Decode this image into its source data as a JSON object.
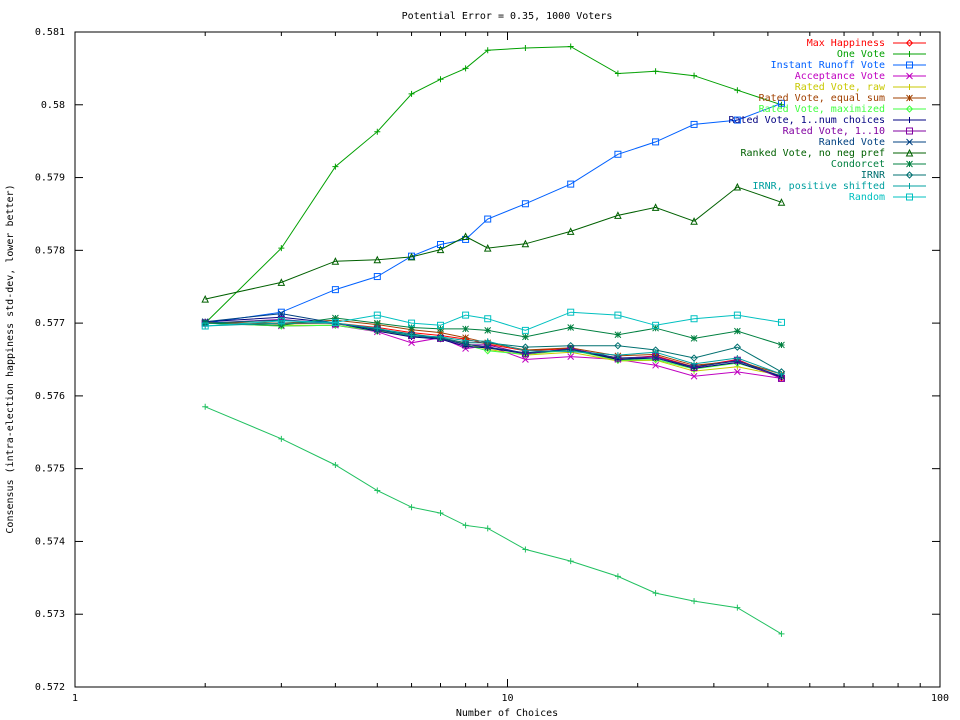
{
  "chart_data": {
    "type": "line",
    "title": "Potential Error = 0.35, 1000 Voters",
    "xlabel": "Number of Choices",
    "ylabel": "Consensus (intra-election happiness std-dev, lower better)",
    "x_scale": "log",
    "xlim": [
      1,
      100
    ],
    "ylim": [
      0.572,
      0.581
    ],
    "x_ticks": [
      1,
      10,
      100
    ],
    "x_tick_labels": [
      "1",
      "10",
      "100"
    ],
    "y_ticks": [
      0.572,
      0.573,
      0.574,
      0.575,
      0.576,
      0.577,
      0.578,
      0.579,
      0.58,
      0.581
    ],
    "y_tick_labels": [
      "0.572",
      "0.573",
      "0.574",
      "0.575",
      "0.576",
      "0.577",
      "0.578",
      "0.579",
      "0.58",
      "0.581"
    ],
    "grid": false,
    "legend_position": "top-right",
    "x": [
      2,
      3,
      4,
      5,
      6,
      7,
      8,
      9,
      11,
      14,
      18,
      22,
      27,
      34,
      43
    ],
    "series": [
      {
        "name": "Max Happiness",
        "color": "#ff0000",
        "marker": "diamond",
        "values": [
          0.57701,
          0.57699,
          0.577,
          0.57694,
          0.57687,
          0.57683,
          0.57678,
          0.57671,
          0.57662,
          0.57665,
          0.57651,
          0.57655,
          0.5764,
          0.5765,
          0.57625
        ]
      },
      {
        "name": "One Vote",
        "color": "#00a000",
        "marker": "plus",
        "values": [
          0.577,
          0.57803,
          0.57915,
          0.57963,
          0.58015,
          0.58035,
          0.5805,
          0.58075,
          0.58078,
          0.5808,
          0.58043,
          0.58046,
          0.5804,
          0.5802,
          0.58
        ]
      },
      {
        "name": "Instant Runoff Vote",
        "color": "#0060ff",
        "marker": "square",
        "values": [
          0.577,
          0.57715,
          0.57746,
          0.57764,
          0.57792,
          0.57808,
          0.57815,
          0.57843,
          0.57864,
          0.57891,
          0.57932,
          0.57949,
          0.57973,
          0.57979,
          0.58002
        ]
      },
      {
        "name": "Acceptance Vote",
        "color": "#c000c0",
        "marker": "x",
        "values": [
          0.577,
          0.57696,
          0.57697,
          0.57688,
          0.57673,
          0.5768,
          0.57665,
          0.57669,
          0.5765,
          0.57654,
          0.5765,
          0.57642,
          0.57627,
          0.57633,
          0.57624
        ]
      },
      {
        "name": "Rated Vote, raw",
        "color": "#c8c800",
        "marker": "plus",
        "values": [
          0.577,
          0.57697,
          0.57697,
          0.5769,
          0.57683,
          0.57678,
          0.57672,
          0.57664,
          0.57656,
          0.5766,
          0.57648,
          0.57649,
          0.57634,
          0.5764,
          0.57628
        ]
      },
      {
        "name": "Rated Vote, equal sum",
        "color": "#a04000",
        "marker": "star",
        "values": [
          0.57701,
          0.577,
          0.57704,
          0.57698,
          0.57691,
          0.57687,
          0.5768,
          0.57673,
          0.57663,
          0.57666,
          0.57655,
          0.57657,
          0.57642,
          0.57648,
          0.5763
        ]
      },
      {
        "name": "Rated Vote, maximized",
        "color": "#40ff40",
        "marker": "diamond",
        "values": [
          0.577,
          0.57696,
          0.57697,
          0.57689,
          0.57682,
          0.57679,
          0.5767,
          0.57662,
          0.57657,
          0.57663,
          0.57649,
          0.5765,
          0.57637,
          0.57645,
          0.57627
        ]
      },
      {
        "name": "Rated Vote, 1..num choices",
        "color": "#000080",
        "marker": "plus",
        "values": [
          0.57702,
          0.57708,
          0.577,
          0.57689,
          0.57681,
          0.57678,
          0.57668,
          0.57666,
          0.57658,
          0.57664,
          0.5765,
          0.57652,
          0.57638,
          0.57646,
          0.57626
        ]
      },
      {
        "name": "Rated Vote, 1..10",
        "color": "#8000a0",
        "marker": "square",
        "values": [
          0.577,
          0.57705,
          0.57699,
          0.57692,
          0.57683,
          0.57679,
          0.5767,
          0.5767,
          0.57658,
          0.57665,
          0.57652,
          0.57654,
          0.57639,
          0.57649,
          0.57624
        ]
      },
      {
        "name": "Ranked Vote",
        "color": "#004080",
        "marker": "x",
        "values": [
          0.57702,
          0.57713,
          0.577,
          0.57691,
          0.57683,
          0.57679,
          0.57671,
          0.57667,
          0.57659,
          0.57664,
          0.57652,
          0.57652,
          0.5764,
          0.57648,
          0.57627
        ]
      },
      {
        "name": "Ranked Vote, no neg pref",
        "color": "#006000",
        "marker": "triangle",
        "values": [
          0.57733,
          0.57756,
          0.57785,
          0.57787,
          0.57791,
          0.57801,
          0.57819,
          0.57803,
          0.57809,
          0.57826,
          0.57848,
          0.57859,
          0.5784,
          0.57887,
          0.57866
        ]
      },
      {
        "name": "Condorcet",
        "color": "#008040",
        "marker": "star",
        "values": [
          0.577,
          0.57697,
          0.57707,
          0.577,
          0.57694,
          0.57692,
          0.57692,
          0.5769,
          0.57681,
          0.57694,
          0.57684,
          0.57693,
          0.57679,
          0.57689,
          0.5767
        ]
      },
      {
        "name": "IRNR",
        "color": "#007070",
        "marker": "diamond",
        "values": [
          0.577,
          0.57704,
          0.577,
          0.57692,
          0.57685,
          0.5768,
          0.57673,
          0.57673,
          0.57667,
          0.57669,
          0.57669,
          0.57663,
          0.57652,
          0.57667,
          0.57633
        ]
      },
      {
        "name": "IRNR, positive shifted",
        "color": "#00a0a0",
        "marker": "plus",
        "values": [
          0.57696,
          0.577,
          0.577,
          0.57693,
          0.57683,
          0.57681,
          0.57676,
          0.57675,
          0.57662,
          0.57661,
          0.57656,
          0.5766,
          0.57644,
          0.57652,
          0.5763
        ]
      },
      {
        "name": "Random",
        "color": "#00c0c0",
        "marker": "square",
        "values": [
          0.57696,
          0.57703,
          0.57701,
          0.57711,
          0.577,
          0.57697,
          0.57711,
          0.57706,
          0.5769,
          0.57715,
          0.57711,
          0.57697,
          0.57706,
          0.57711,
          0.57701
        ]
      },
      {
        "name": "",
        "color": "#20c060",
        "marker": "plus",
        "values": [
          0.57585,
          0.57541,
          0.57505,
          0.5747,
          0.57447,
          0.57439,
          0.57422,
          0.57418,
          0.57389,
          0.57373,
          0.57352,
          0.57329,
          0.57318,
          0.57309,
          0.57273
        ]
      }
    ]
  }
}
